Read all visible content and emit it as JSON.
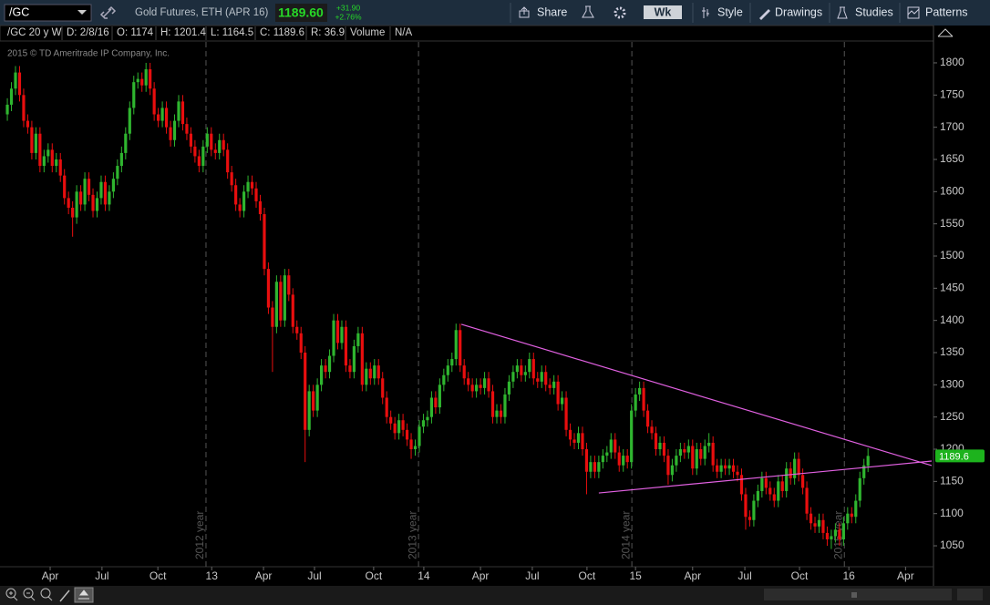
{
  "toolbar": {
    "symbol": "/GC",
    "description": "Gold Futures, ETH (APR 16)",
    "last": "1189.60",
    "change": "+31.90",
    "change_pct": "+2.76%",
    "buttons": [
      "Share",
      "Wk",
      "Style",
      "Drawings",
      "Studies",
      "Patterns"
    ]
  },
  "status_bar": {
    "study": "/GC 20 y W",
    "items": [
      "D: 2/8/16",
      "O: 1174",
      "H: 1201.4",
      "L: 1164.5",
      "C: 1189.6",
      "R: 36.9",
      "Volume",
      "N/A"
    ]
  },
  "chart_data": {
    "type": "candlestick",
    "copyright": "2015 © TD Ameritrade IP Company, Inc.",
    "up_color": "#2fb52f",
    "down_color": "#e80e0e",
    "trend_color": "#e060e0",
    "ylim": [
      1017.5,
      1832.5
    ],
    "yticks": [
      1050,
      1100,
      1150,
      1200,
      1250,
      1300,
      1350,
      1400,
      1450,
      1500,
      1550,
      1600,
      1650,
      1700,
      1750,
      1800
    ],
    "xlim": [
      -1.8,
      226.6
    ],
    "xticks": [
      {
        "value": 10.5,
        "label": "Apr"
      },
      {
        "value": 23.2,
        "label": "Jul"
      },
      {
        "value": 36.9,
        "label": "Oct"
      },
      {
        "value": 50.1,
        "label": "13"
      },
      {
        "value": 62.8,
        "label": "Apr"
      },
      {
        "value": 75.3,
        "label": "Jul"
      },
      {
        "value": 89.8,
        "label": "Oct"
      },
      {
        "value": 102.1,
        "label": "14"
      },
      {
        "value": 116,
        "label": "Apr"
      },
      {
        "value": 128.7,
        "label": "Jul"
      },
      {
        "value": 142.1,
        "label": "Oct"
      },
      {
        "value": 154,
        "label": "15"
      },
      {
        "value": 168,
        "label": "Apr"
      },
      {
        "value": 180.8,
        "label": "Jul"
      },
      {
        "value": 194.2,
        "label": "Oct"
      },
      {
        "value": 206.3,
        "label": "16"
      },
      {
        "value": 220.2,
        "label": "Apr"
      }
    ],
    "period_separators": [
      {
        "value": 48.7,
        "label": "2012 year"
      },
      {
        "value": 100.8,
        "label": "2013 year"
      },
      {
        "value": 153.1,
        "label": "2014 year"
      },
      {
        "value": 205.2,
        "label": "2015 year"
      }
    ],
    "trendlines": [
      {
        "x": [
          111.3,
          226.6
        ],
        "y": [
          1394,
          1174.6
        ]
      },
      {
        "x": [
          145.0,
          226.6
        ],
        "y": [
          1132,
          1181.6
        ]
      }
    ],
    "open": [
      1720,
      1735,
      1760,
      1785,
      1750,
      1710,
      1700,
      1660,
      1690,
      1640,
      1655,
      1665,
      1640,
      1650,
      1625,
      1590,
      1575,
      1560,
      1600,
      1580,
      1620,
      1595,
      1570,
      1590,
      1615,
      1580,
      1600,
      1620,
      1640,
      1660,
      1690,
      1730,
      1770,
      1775,
      1765,
      1790,
      1760,
      1720,
      1710,
      1730,
      1700,
      1680,
      1710,
      1740,
      1705,
      1690,
      1670,
      1655,
      1640,
      1670,
      1690,
      1665,
      1660,
      1680,
      1665,
      1630,
      1610,
      1580,
      1570,
      1600,
      1615,
      1605,
      1585,
      1565,
      1480,
      1420,
      1390,
      1460,
      1400,
      1470,
      1440,
      1390,
      1380,
      1350,
      1230,
      1290,
      1260,
      1300,
      1330,
      1320,
      1345,
      1400,
      1365,
      1390,
      1330,
      1320,
      1360,
      1380,
      1300,
      1325,
      1310,
      1330,
      1310,
      1280,
      1250,
      1240,
      1225,
      1245,
      1230,
      1215,
      1200,
      1205,
      1235,
      1245,
      1250,
      1280,
      1265,
      1300,
      1315,
      1330,
      1340,
      1385,
      1330,
      1310,
      1300,
      1290,
      1300,
      1295,
      1310,
      1290,
      1250,
      1260,
      1250,
      1285,
      1305,
      1320,
      1330,
      1315,
      1320,
      1340,
      1310,
      1305,
      1320,
      1300,
      1295,
      1305,
      1270,
      1280,
      1230,
      1215,
      1210,
      1225,
      1200,
      1165,
      1180,
      1165,
      1180,
      1190,
      1195,
      1215,
      1195,
      1175,
      1190,
      1180,
      1260,
      1285,
      1295,
      1260,
      1235,
      1225,
      1200,
      1210,
      1190,
      1160,
      1175,
      1190,
      1200,
      1195,
      1205,
      1170,
      1200,
      1185,
      1205,
      1210,
      1175,
      1165,
      1175,
      1170,
      1175,
      1165,
      1160,
      1130,
      1095,
      1090,
      1120,
      1135,
      1155,
      1140,
      1130,
      1120,
      1150,
      1135,
      1170,
      1155,
      1185,
      1160,
      1140,
      1100,
      1085,
      1080,
      1090,
      1070,
      1060,
      1065,
      1075,
      1060,
      1085,
      1100,
      1095,
      1120,
      1155,
      1174
    ],
    "high": [
      1745,
      1770,
      1795,
      1795,
      1760,
      1720,
      1710,
      1700,
      1700,
      1665,
      1675,
      1675,
      1660,
      1660,
      1635,
      1600,
      1585,
      1610,
      1610,
      1630,
      1630,
      1605,
      1600,
      1625,
      1625,
      1610,
      1630,
      1650,
      1670,
      1700,
      1740,
      1780,
      1785,
      1785,
      1800,
      1800,
      1770,
      1730,
      1740,
      1740,
      1710,
      1720,
      1750,
      1750,
      1715,
      1700,
      1680,
      1665,
      1680,
      1700,
      1700,
      1675,
      1690,
      1690,
      1675,
      1640,
      1620,
      1590,
      1610,
      1625,
      1625,
      1615,
      1595,
      1575,
      1490,
      1430,
      1470,
      1470,
      1480,
      1480,
      1450,
      1400,
      1390,
      1360,
      1300,
      1300,
      1310,
      1340,
      1340,
      1355,
      1410,
      1410,
      1400,
      1400,
      1340,
      1370,
      1390,
      1390,
      1335,
      1335,
      1340,
      1340,
      1320,
      1290,
      1260,
      1250,
      1255,
      1255,
      1240,
      1225,
      1215,
      1245,
      1255,
      1260,
      1290,
      1290,
      1310,
      1325,
      1340,
      1350,
      1395,
      1395,
      1340,
      1320,
      1310,
      1310,
      1310,
      1320,
      1320,
      1300,
      1270,
      1270,
      1295,
      1315,
      1330,
      1340,
      1340,
      1330,
      1350,
      1350,
      1320,
      1330,
      1330,
      1310,
      1315,
      1315,
      1290,
      1290,
      1240,
      1225,
      1235,
      1235,
      1210,
      1190,
      1190,
      1190,
      1200,
      1205,
      1225,
      1225,
      1205,
      1200,
      1200,
      1270,
      1295,
      1305,
      1305,
      1270,
      1245,
      1235,
      1220,
      1220,
      1200,
      1185,
      1200,
      1210,
      1210,
      1215,
      1215,
      1210,
      1210,
      1215,
      1225,
      1220,
      1185,
      1185,
      1185,
      1185,
      1185,
      1175,
      1170,
      1140,
      1105,
      1130,
      1145,
      1165,
      1165,
      1150,
      1140,
      1160,
      1160,
      1180,
      1180,
      1195,
      1195,
      1170,
      1150,
      1110,
      1095,
      1100,
      1100,
      1080,
      1075,
      1085,
      1085,
      1095,
      1110,
      1110,
      1130,
      1165,
      1185,
      1201.4
    ],
    "low": [
      1710,
      1725,
      1750,
      1740,
      1700,
      1690,
      1650,
      1650,
      1630,
      1630,
      1645,
      1630,
      1630,
      1615,
      1580,
      1565,
      1530,
      1550,
      1570,
      1570,
      1585,
      1560,
      1560,
      1580,
      1570,
      1570,
      1590,
      1610,
      1630,
      1650,
      1680,
      1720,
      1760,
      1755,
      1755,
      1750,
      1710,
      1700,
      1700,
      1690,
      1670,
      1670,
      1700,
      1695,
      1680,
      1660,
      1645,
      1630,
      1630,
      1660,
      1655,
      1650,
      1650,
      1655,
      1620,
      1600,
      1570,
      1560,
      1560,
      1590,
      1595,
      1575,
      1555,
      1470,
      1410,
      1320,
      1380,
      1390,
      1390,
      1430,
      1380,
      1370,
      1340,
      1180,
      1220,
      1250,
      1250,
      1290,
      1310,
      1310,
      1335,
      1355,
      1355,
      1320,
      1310,
      1310,
      1350,
      1290,
      1290,
      1300,
      1300,
      1300,
      1270,
      1240,
      1230,
      1215,
      1215,
      1220,
      1205,
      1185,
      1190,
      1195,
      1225,
      1235,
      1240,
      1255,
      1255,
      1290,
      1305,
      1320,
      1330,
      1320,
      1300,
      1290,
      1280,
      1280,
      1285,
      1285,
      1280,
      1240,
      1240,
      1240,
      1240,
      1275,
      1295,
      1310,
      1305,
      1305,
      1310,
      1300,
      1295,
      1295,
      1290,
      1285,
      1285,
      1260,
      1260,
      1220,
      1205,
      1200,
      1200,
      1190,
      1130,
      1155,
      1155,
      1155,
      1170,
      1180,
      1185,
      1185,
      1165,
      1165,
      1170,
      1170,
      1250,
      1275,
      1250,
      1225,
      1215,
      1190,
      1190,
      1180,
      1145,
      1150,
      1165,
      1180,
      1185,
      1185,
      1160,
      1160,
      1175,
      1175,
      1195,
      1165,
      1155,
      1155,
      1160,
      1160,
      1155,
      1150,
      1120,
      1075,
      1080,
      1080,
      1110,
      1125,
      1130,
      1120,
      1110,
      1110,
      1125,
      1125,
      1145,
      1145,
      1150,
      1130,
      1090,
      1075,
      1070,
      1070,
      1060,
      1050,
      1045,
      1055,
      1050,
      1050,
      1075,
      1085,
      1085,
      1110,
      1145,
      1164.5
    ],
    "close": [
      1735,
      1760,
      1785,
      1750,
      1710,
      1700,
      1660,
      1690,
      1640,
      1655,
      1665,
      1640,
      1650,
      1625,
      1590,
      1575,
      1560,
      1600,
      1580,
      1620,
      1595,
      1570,
      1590,
      1615,
      1580,
      1600,
      1620,
      1640,
      1660,
      1690,
      1730,
      1770,
      1775,
      1765,
      1790,
      1760,
      1720,
      1710,
      1730,
      1700,
      1680,
      1710,
      1740,
      1705,
      1690,
      1670,
      1655,
      1640,
      1670,
      1690,
      1665,
      1660,
      1680,
      1665,
      1630,
      1610,
      1580,
      1570,
      1600,
      1615,
      1605,
      1585,
      1565,
      1480,
      1420,
      1390,
      1460,
      1400,
      1470,
      1440,
      1390,
      1380,
      1350,
      1230,
      1290,
      1260,
      1300,
      1330,
      1320,
      1345,
      1400,
      1365,
      1390,
      1330,
      1320,
      1360,
      1380,
      1300,
      1325,
      1310,
      1330,
      1310,
      1280,
      1250,
      1240,
      1225,
      1245,
      1230,
      1215,
      1200,
      1205,
      1235,
      1245,
      1250,
      1280,
      1265,
      1300,
      1315,
      1330,
      1340,
      1385,
      1330,
      1310,
      1300,
      1290,
      1300,
      1295,
      1310,
      1290,
      1250,
      1260,
      1250,
      1285,
      1305,
      1320,
      1330,
      1315,
      1320,
      1340,
      1310,
      1305,
      1320,
      1300,
      1295,
      1305,
      1270,
      1280,
      1230,
      1215,
      1210,
      1225,
      1200,
      1165,
      1180,
      1165,
      1180,
      1190,
      1195,
      1215,
      1195,
      1175,
      1190,
      1180,
      1260,
      1285,
      1295,
      1260,
      1235,
      1225,
      1200,
      1210,
      1190,
      1160,
      1175,
      1190,
      1200,
      1195,
      1205,
      1170,
      1200,
      1185,
      1205,
      1210,
      1175,
      1165,
      1175,
      1170,
      1175,
      1165,
      1160,
      1130,
      1095,
      1090,
      1120,
      1135,
      1155,
      1140,
      1130,
      1120,
      1150,
      1135,
      1170,
      1155,
      1185,
      1160,
      1140,
      1100,
      1085,
      1080,
      1090,
      1070,
      1060,
      1065,
      1075,
      1060,
      1085,
      1100,
      1095,
      1120,
      1155,
      1175,
      1189.6
    ]
  }
}
